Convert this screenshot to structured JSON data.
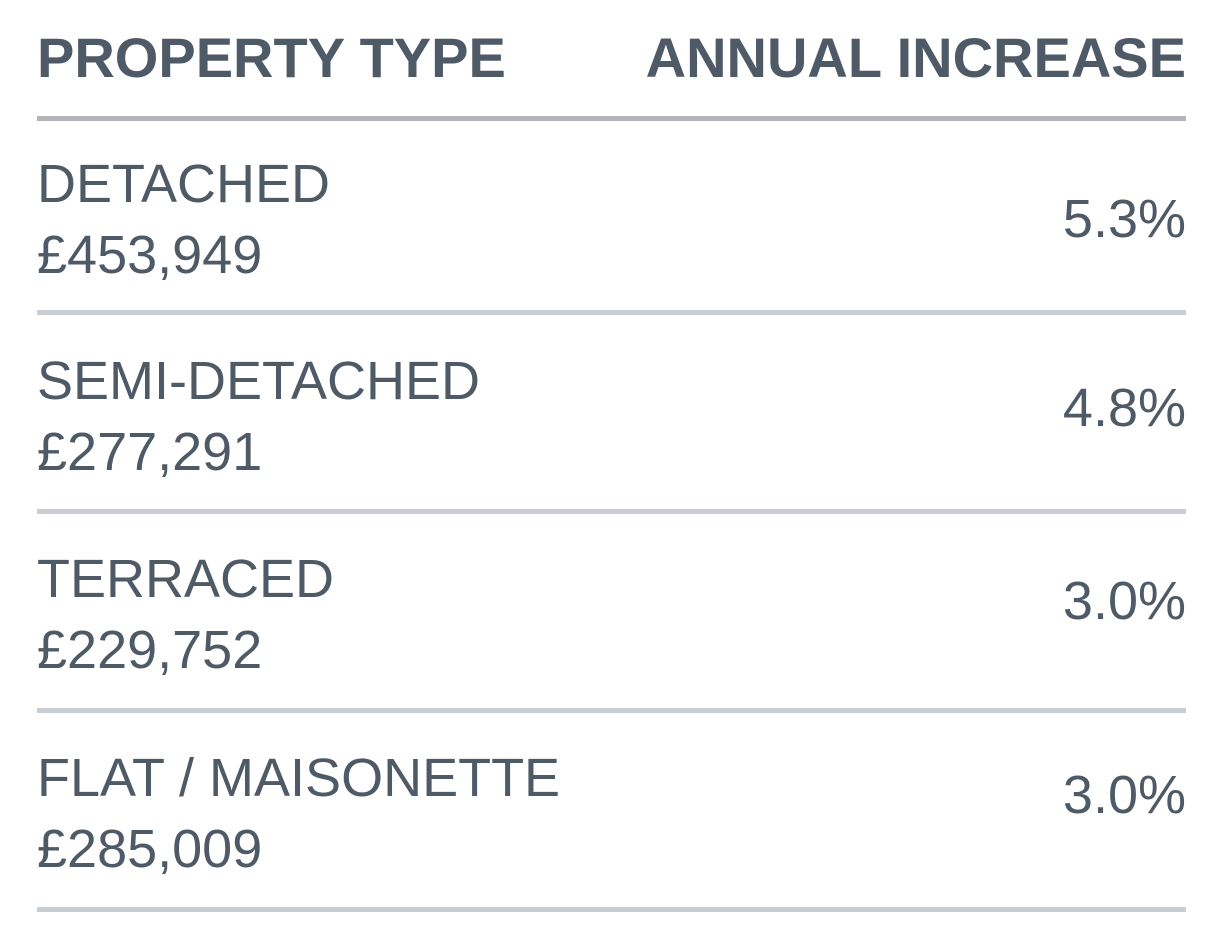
{
  "header": {
    "property_type": "PROPERTY TYPE",
    "annual_increase": "ANNUAL INCREASE"
  },
  "rows": [
    {
      "name": "DETACHED",
      "price": "£453,949",
      "change": "5.3%"
    },
    {
      "name": "SEMI-DETACHED",
      "price": "£277,291",
      "change": "4.8%"
    },
    {
      "name": "TERRACED",
      "price": "£229,752",
      "change": "3.0%"
    },
    {
      "name": "FLAT / MAISONETTE",
      "price": "£285,009",
      "change": "3.0%"
    }
  ]
}
